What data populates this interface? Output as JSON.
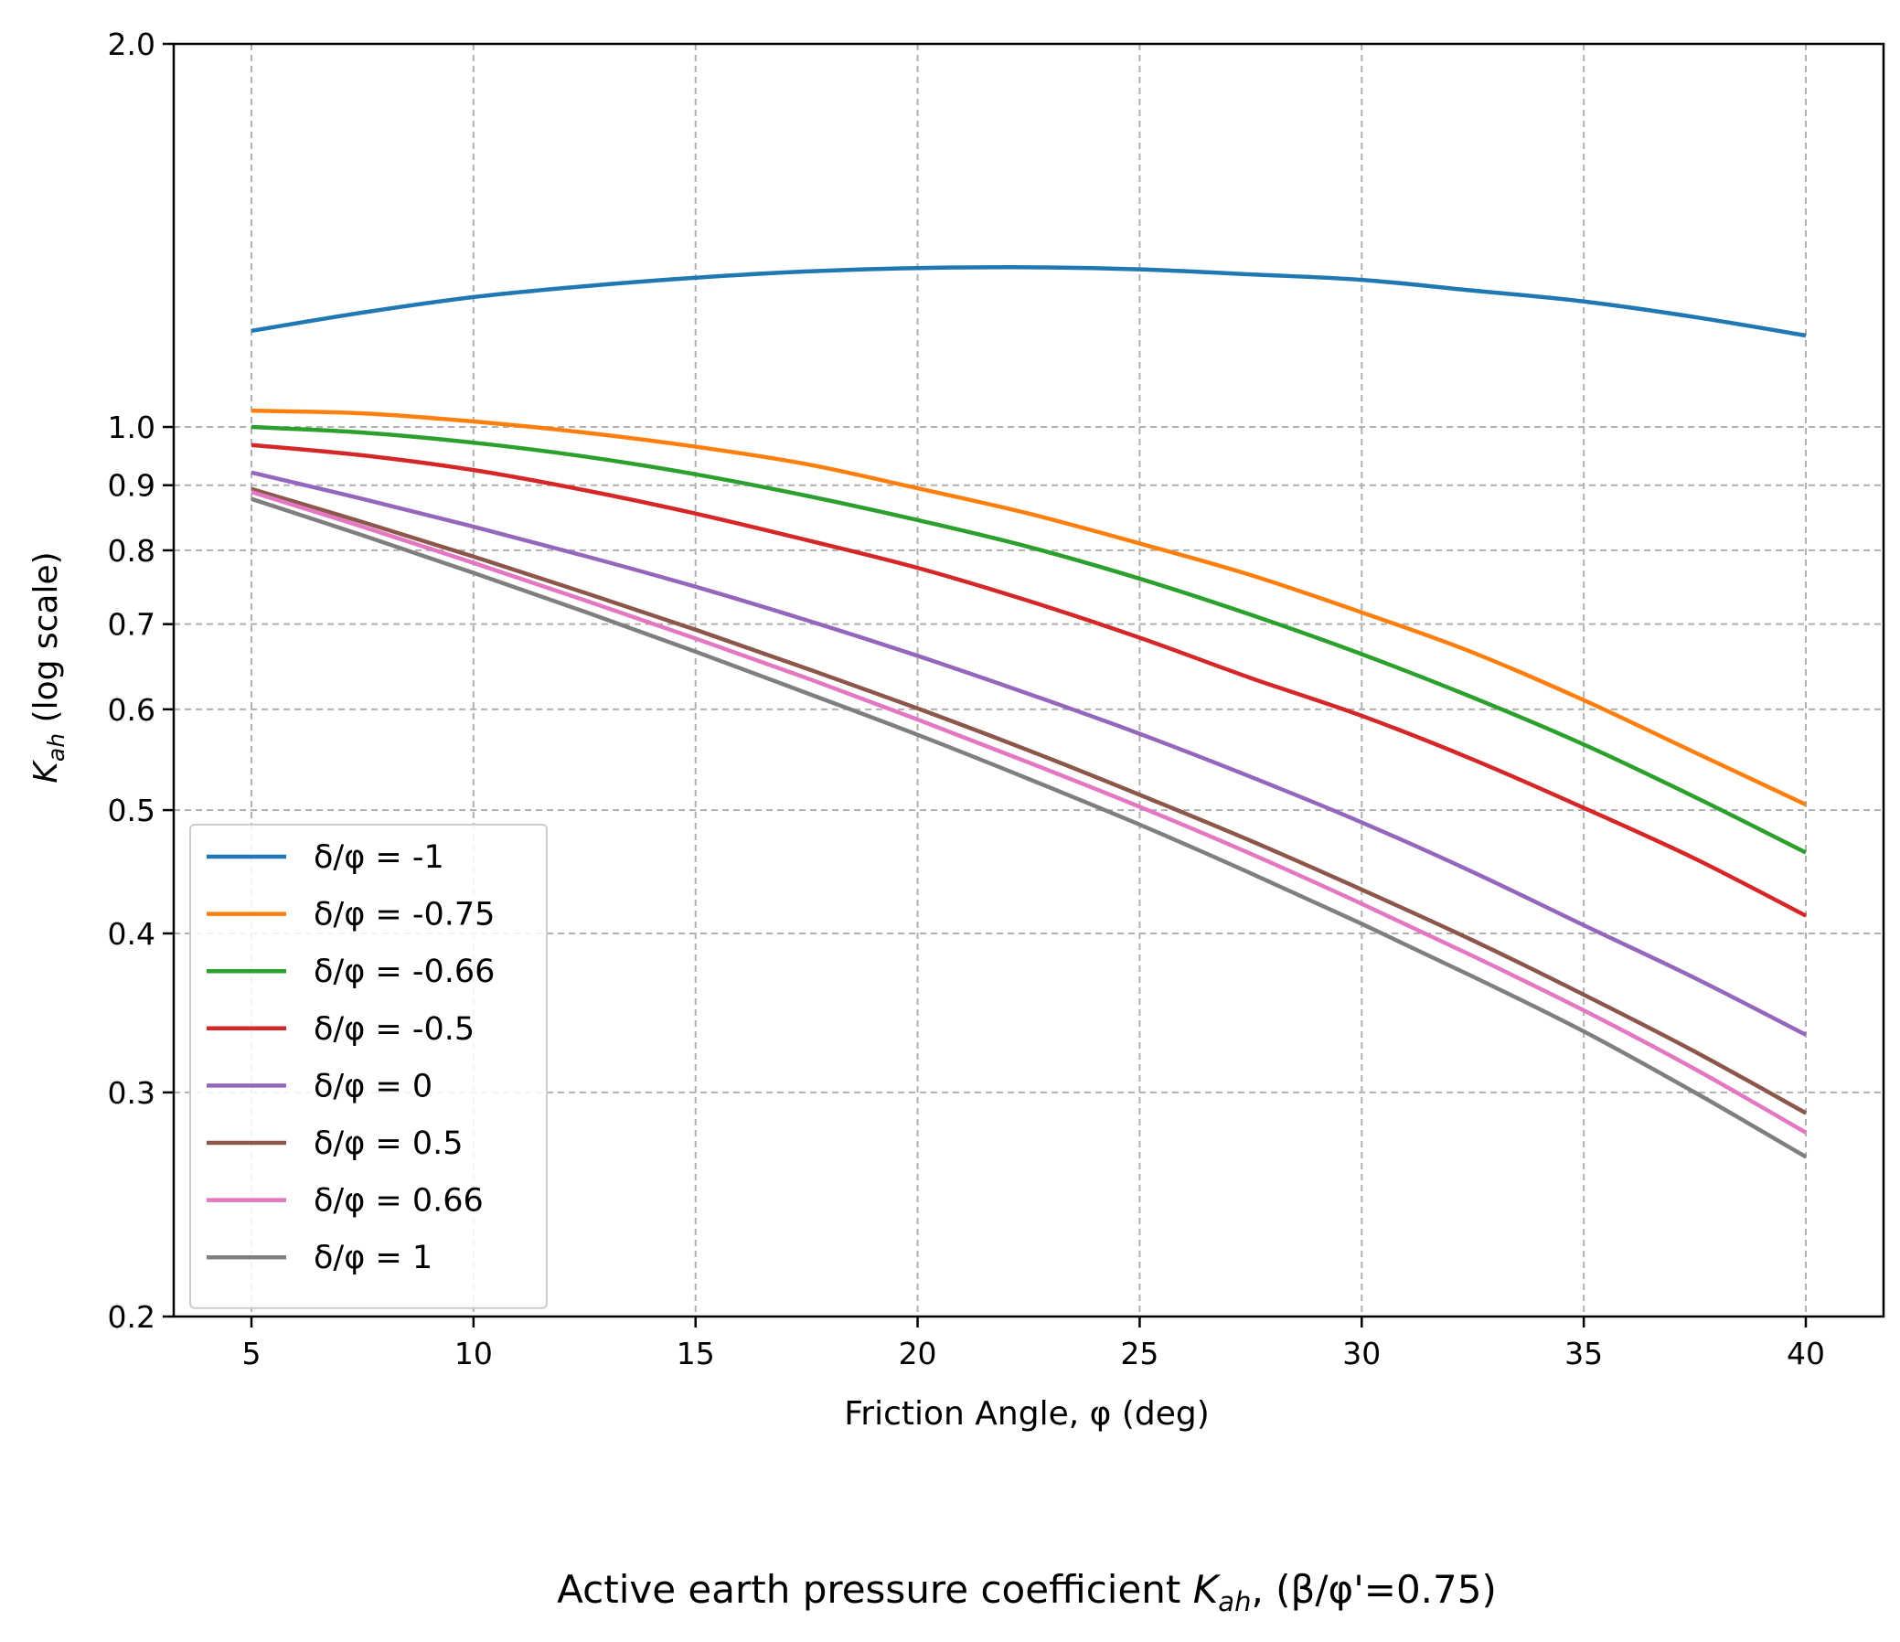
{
  "chart_data": {
    "type": "line",
    "title_main": "Active earth pressure coefficient ",
    "title_symbol": "K",
    "title_sub": "ah",
    "title_tail": ", (β/φ'=0.75)",
    "xlabel": "Friction Angle, φ (deg)",
    "ylabel_symbol": "K",
    "ylabel_sub": "ah",
    "ylabel_tail": " (log scale)",
    "x_scale": "linear",
    "y_scale": "log",
    "xlim": [
      3.25,
      41.75
    ],
    "ylim": [
      0.2,
      2.0
    ],
    "xticks": [
      5,
      10,
      15,
      20,
      25,
      30,
      35,
      40
    ],
    "yticks": [
      0.2,
      0.3,
      0.4,
      0.5,
      0.6,
      0.7,
      0.8,
      0.9,
      1.0,
      2.0
    ],
    "ytick_labels": [
      "0.2",
      "0.3",
      "0.4",
      "0.5",
      "0.6",
      "0.7",
      "0.8",
      "0.9",
      "1.0",
      "2.0"
    ],
    "grid": true,
    "legend_position": "lower-left",
    "x": [
      5,
      7.5,
      10,
      12.5,
      15,
      17.5,
      20,
      22.5,
      25,
      27.5,
      30,
      32.5,
      35,
      37.5,
      40
    ],
    "series": [
      {
        "name": "δ/φ = -1",
        "color": "#1f77b4",
        "values": [
          1.19,
          1.23,
          1.265,
          1.29,
          1.31,
          1.325,
          1.333,
          1.335,
          1.33,
          1.318,
          1.305,
          1.28,
          1.255,
          1.22,
          1.18
        ]
      },
      {
        "name": "δ/φ = -0.75",
        "color": "#ff7f0e",
        "values": [
          1.03,
          1.025,
          1.01,
          0.99,
          0.965,
          0.935,
          0.895,
          0.855,
          0.81,
          0.765,
          0.715,
          0.665,
          0.61,
          0.555,
          0.505
        ]
      },
      {
        "name": "δ/φ = -0.66",
        "color": "#2ca02c",
        "values": [
          1.0,
          0.99,
          0.972,
          0.948,
          0.918,
          0.883,
          0.845,
          0.805,
          0.76,
          0.712,
          0.663,
          0.613,
          0.563,
          0.512,
          0.463
        ]
      },
      {
        "name": "δ/φ = -0.5",
        "color": "#d62728",
        "values": [
          0.968,
          0.95,
          0.925,
          0.892,
          0.855,
          0.815,
          0.775,
          0.73,
          0.683,
          0.635,
          0.593,
          0.548,
          0.502,
          0.458,
          0.413
        ]
      },
      {
        "name": "δ/φ = 0",
        "color": "#9467bd",
        "values": [
          0.921,
          0.878,
          0.835,
          0.792,
          0.749,
          0.705,
          0.661,
          0.617,
          0.574,
          0.531,
          0.489,
          0.447,
          0.406,
          0.369,
          0.333
        ]
      },
      {
        "name": "δ/φ = 0.5",
        "color": "#8c564b",
        "values": [
          0.894,
          0.842,
          0.791,
          0.741,
          0.693,
          0.646,
          0.601,
          0.557,
          0.514,
          0.473,
          0.433,
          0.395,
          0.358,
          0.323,
          0.289
        ]
      },
      {
        "name": "δ/φ = 0.66",
        "color": "#e377c2",
        "values": [
          0.889,
          0.835,
          0.782,
          0.731,
          0.682,
          0.635,
          0.589,
          0.545,
          0.503,
          0.462,
          0.422,
          0.384,
          0.348,
          0.313,
          0.279
        ]
      },
      {
        "name": "δ/φ = 1",
        "color": "#7f7f7f",
        "values": [
          0.878,
          0.822,
          0.768,
          0.716,
          0.666,
          0.618,
          0.573,
          0.529,
          0.487,
          0.446,
          0.407,
          0.37,
          0.335,
          0.3,
          0.267
        ]
      }
    ]
  }
}
